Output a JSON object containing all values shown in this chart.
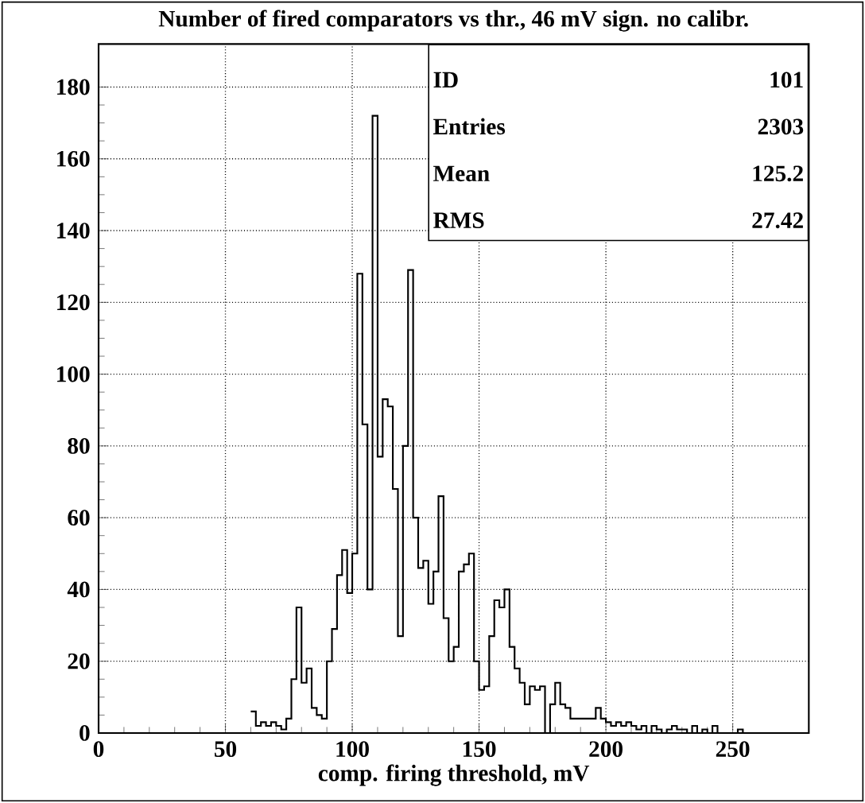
{
  "chart_data": {
    "type": "histogram",
    "title": "Number of fired comparators vs thr., 46 mV sign. no calibr.",
    "xlabel": "comp. firing threshold, mV",
    "bins": [
      60,
      62,
      64,
      66,
      68,
      70,
      72,
      74,
      76,
      78,
      80,
      82,
      84,
      86,
      88,
      90,
      92,
      94,
      96,
      98,
      100,
      102,
      104,
      106,
      108,
      110,
      112,
      114,
      116,
      118,
      120,
      122,
      124,
      126,
      128,
      130,
      132,
      134,
      136,
      138,
      140,
      142,
      144,
      146,
      148,
      150,
      152,
      154,
      156,
      158,
      160,
      162,
      164,
      166,
      168,
      170,
      172,
      174,
      176,
      178,
      180,
      182,
      184,
      186,
      188,
      190,
      192,
      194,
      196,
      198,
      200,
      202,
      204,
      206,
      208,
      210,
      212,
      214,
      216,
      218,
      220,
      222,
      224,
      226,
      228,
      230,
      232,
      234,
      236,
      238,
      240,
      242,
      244,
      246,
      248,
      250,
      252,
      254,
      256
    ],
    "values": [
      6,
      2,
      3,
      2,
      3,
      2,
      1,
      4,
      15,
      35,
      14,
      18,
      7,
      5,
      4,
      20,
      29,
      44,
      51,
      39,
      50,
      128,
      86,
      40,
      172,
      77,
      93,
      91,
      68,
      27,
      80,
      129,
      60,
      46,
      48,
      36,
      45,
      66,
      32,
      20,
      24,
      45,
      47,
      50,
      20,
      12,
      13,
      27,
      37,
      35,
      40,
      24,
      18,
      14,
      8,
      13,
      12,
      13,
      0,
      8,
      14,
      8,
      7,
      4,
      4,
      4,
      4,
      4,
      7,
      4,
      3,
      2,
      3,
      2,
      3,
      2,
      1,
      2,
      0,
      2,
      1,
      0,
      1,
      2,
      1,
      1,
      0,
      2,
      0,
      1,
      0,
      2,
      0,
      0,
      0,
      0,
      1,
      0
    ],
    "color": "#000000",
    "xlim": [
      0,
      280
    ],
    "ylim": [
      0,
      192
    ],
    "xticks": [
      0,
      50,
      100,
      150,
      200,
      250
    ],
    "yticks": [
      0,
      20,
      40,
      60,
      80,
      100,
      120,
      140,
      160,
      180
    ],
    "grid": true,
    "annotations": [
      "ID",
      "101",
      "Entries",
      "2303",
      "Mean",
      "125.2",
      "RMS",
      "27.42"
    ]
  }
}
